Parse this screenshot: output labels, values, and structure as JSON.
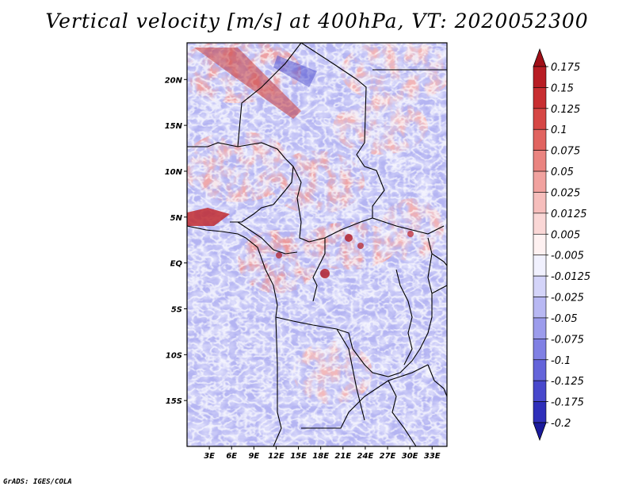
{
  "title": "Vertical velocity [m/s] at 400hPa, VT: 2020052300",
  "credit": "GrADS: IGES/COLA",
  "map": {
    "variable": "Vertical velocity",
    "units": "m/s",
    "level": "400hPa",
    "valid_time": "2020052300",
    "lon_range": [
      0,
      35
    ],
    "lat_range": [
      -20,
      24
    ],
    "x_ticks": [
      {
        "label": "3E",
        "lon": 3
      },
      {
        "label": "6E",
        "lon": 6
      },
      {
        "label": "9E",
        "lon": 9
      },
      {
        "label": "12E",
        "lon": 12
      },
      {
        "label": "15E",
        "lon": 15
      },
      {
        "label": "18E",
        "lon": 18
      },
      {
        "label": "21E",
        "lon": 21
      },
      {
        "label": "24E",
        "lon": 24
      },
      {
        "label": "27E",
        "lon": 27
      },
      {
        "label": "30E",
        "lon": 30
      },
      {
        "label": "33E",
        "lon": 33
      }
    ],
    "y_ticks": [
      {
        "label": "20N",
        "lat": 20
      },
      {
        "label": "15N",
        "lat": 15
      },
      {
        "label": "10N",
        "lat": 10
      },
      {
        "label": "5N",
        "lat": 5
      },
      {
        "label": "EQ",
        "lat": 0
      },
      {
        "label": "5S",
        "lat": -5
      },
      {
        "label": "10S",
        "lat": -10
      },
      {
        "label": "15S",
        "lat": -15
      }
    ]
  },
  "colorbar": {
    "levels": [
      {
        "label": "0.175",
        "color": "#b01820"
      },
      {
        "label": "0.15",
        "color": "#c02228"
      },
      {
        "label": "0.125",
        "color": "#d03a3a"
      },
      {
        "label": "0.1",
        "color": "#dc5450"
      },
      {
        "label": "0.075",
        "color": "#e67470"
      },
      {
        "label": "0.05",
        "color": "#ee9490"
      },
      {
        "label": "0.025",
        "color": "#f4b0ae"
      },
      {
        "label": "0.0125",
        "color": "#f8cbca"
      },
      {
        "label": "0.005",
        "color": "#fce2e2"
      },
      {
        "label": "-0.005",
        "color": "#ffffff"
      },
      {
        "label": "-0.0125",
        "color": "#e2e2fc"
      },
      {
        "label": "-0.025",
        "color": "#c6c6f6"
      },
      {
        "label": "-0.05",
        "color": "#aaaaf0"
      },
      {
        "label": "-0.075",
        "color": "#8e8ee8"
      },
      {
        "label": "-0.1",
        "color": "#7272e0"
      },
      {
        "label": "-0.125",
        "color": "#5656d4"
      },
      {
        "label": "-0.175",
        "color": "#3a3ac4"
      },
      {
        "label": "-0.2",
        "color": "#2424b0"
      }
    ],
    "top_arrow_color": "#a01018",
    "bottom_arrow_color": "#1a1a9c"
  }
}
